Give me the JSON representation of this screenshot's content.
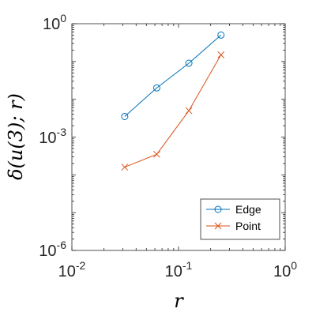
{
  "chart_data": {
    "type": "line",
    "xscale": "log",
    "yscale": "log",
    "xlim": [
      0.01,
      1
    ],
    "ylim": [
      1e-06,
      1
    ],
    "xticks": [
      {
        "base": "10",
        "exp": "-2"
      },
      {
        "base": "10",
        "exp": "-1"
      },
      {
        "base": "10",
        "exp": "0"
      }
    ],
    "yticks": [
      {
        "base": "10",
        "exp": "-6"
      },
      {
        "base": "10",
        "exp": "-3"
      },
      {
        "base": "10",
        "exp": "0"
      }
    ],
    "xlabel": "r",
    "ylabel": "δ(u(3); r)",
    "legend_position": "bottom-right",
    "series": [
      {
        "name": "Edge",
        "color": "#0072BD",
        "marker": "circle",
        "x": [
          0.03125,
          0.0625,
          0.125,
          0.25
        ],
        "y": [
          0.0035,
          0.02,
          0.09,
          0.5
        ]
      },
      {
        "name": "Point",
        "color": "#D95319",
        "marker": "x",
        "x": [
          0.03125,
          0.0625,
          0.125,
          0.25
        ],
        "y": [
          0.00016,
          0.00035,
          0.005,
          0.15
        ]
      }
    ]
  }
}
